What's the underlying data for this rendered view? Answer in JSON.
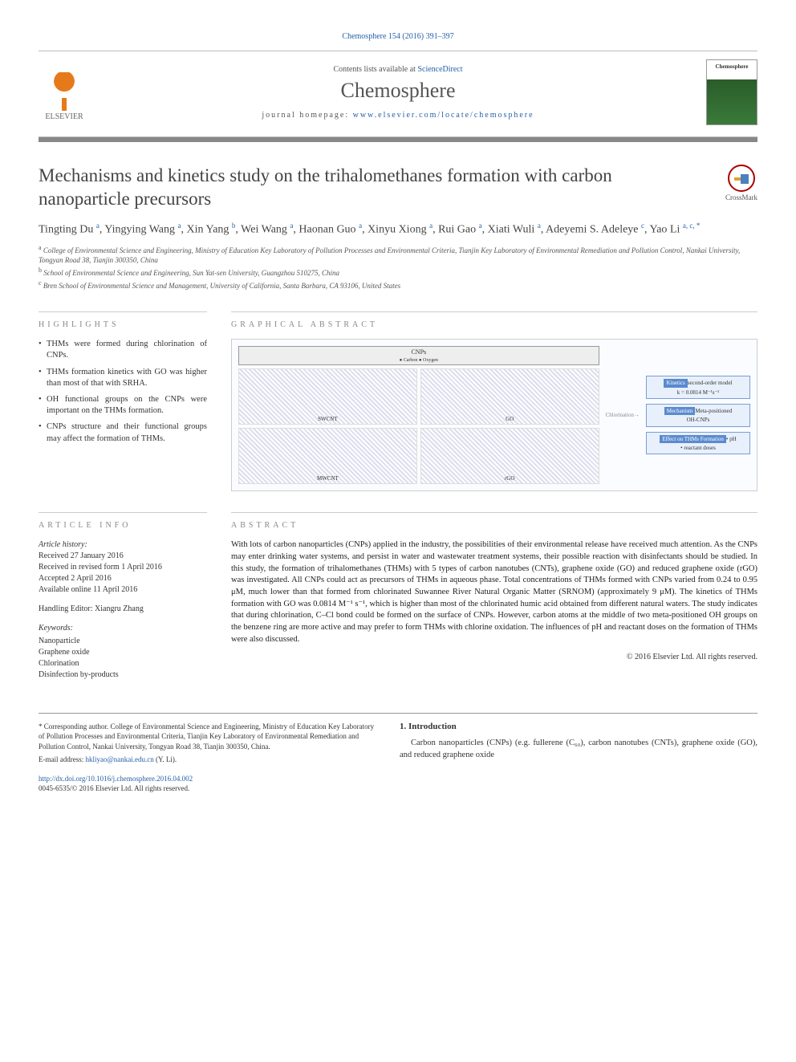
{
  "citation": "Chemosphere 154 (2016) 391–397",
  "header": {
    "contents_prefix": "Contents lists available at ",
    "contents_link": "ScienceDirect",
    "journal": "Chemosphere",
    "homepage_prefix": "journal homepage: ",
    "homepage_link": "www.elsevier.com/locate/chemosphere",
    "publisher": "ELSEVIER",
    "cover_title": "Chemosphere"
  },
  "crossmark": "CrossMark",
  "title": "Mechanisms and kinetics study on the trihalomethanes formation with carbon nanoparticle precursors",
  "authors_html": "Tingting Du <sup>a</sup>, Yingying Wang <sup>a</sup>, Xin Yang <sup>b</sup>, Wei Wang <sup>a</sup>, Haonan Guo <sup>a</sup>, Xinyu Xiong <sup>a</sup>, Rui Gao <sup>a</sup>, Xiati Wuli <sup>a</sup>, Adeyemi S. Adeleye <sup>c</sup>, Yao Li <sup>a, c, *</sup>",
  "affiliations": [
    {
      "sup": "a",
      "text": "College of Environmental Science and Engineering, Ministry of Education Key Laboratory of Pollution Processes and Environmental Criteria, Tianjin Key Laboratory of Environmental Remediation and Pollution Control, Nankai University, Tongyan Road 38, Tianjin 300350, China"
    },
    {
      "sup": "b",
      "text": "School of Environmental Science and Engineering, Sun Yat-sen University, Guangzhou 510275, China"
    },
    {
      "sup": "c",
      "text": "Bren School of Environmental Science and Management, University of California, Santa Barbara, CA 93106, United States"
    }
  ],
  "highlights_head": "HIGHLIGHTS",
  "highlights": [
    "THMs were formed during chlorination of CNPs.",
    "THMs formation kinetics with GO was higher than most of that with SRHA.",
    "OH functional groups on the CNPs were important on the THMs formation.",
    "CNPs structure and their functional groups may affect the formation of THMs."
  ],
  "graphical_head": "GRAPHICAL ABSTRACT",
  "graphical": {
    "cnps_label": "CNPs",
    "legend": "● Carbon  ● Oxygen",
    "mols": [
      "SWCNT",
      "GO",
      "MWCNT",
      "rGO"
    ],
    "arrow_label": "Chlorination",
    "boxes": [
      {
        "title": "Kinetics",
        "body": "second-order model\nk = 0.0814 M⁻¹s⁻¹"
      },
      {
        "title": "Mechanism",
        "body": "Meta-positioned\nOH-CNPs"
      },
      {
        "title": "Effect on THMs Formation",
        "body": "• pH\n• reactant doses"
      }
    ]
  },
  "article_info_head": "ARTICLE INFO",
  "article_info": {
    "history_label": "Article history:",
    "received": "Received 27 January 2016",
    "revised": "Received in revised form 1 April 2016",
    "accepted": "Accepted 2 April 2016",
    "online": "Available online 11 April 2016",
    "editor_label": "Handling Editor: ",
    "editor": "Xiangru Zhang",
    "keywords_label": "Keywords:",
    "keywords": [
      "Nanoparticle",
      "Graphene oxide",
      "Chlorination",
      "Disinfection by-products"
    ]
  },
  "abstract_head": "ABSTRACT",
  "abstract": "With lots of carbon nanoparticles (CNPs) applied in the industry, the possibilities of their environmental release have received much attention. As the CNPs may enter drinking water systems, and persist in water and wastewater treatment systems, their possible reaction with disinfectants should be studied. In this study, the formation of trihalomethanes (THMs) with 5 types of carbon nanotubes (CNTs), graphene oxide (GO) and reduced graphene oxide (rGO) was investigated. All CNPs could act as precursors of THMs in aqueous phase. Total concentrations of THMs formed with CNPs varied from 0.24 to 0.95 μM, much lower than that formed from chlorinated Suwannee River Natural Organic Matter (SRNOM) (approximately 9 μM). The kinetics of THMs formation with GO was 0.0814 M⁻¹ s⁻¹, which is higher than most of the chlorinated humic acid obtained from different natural waters. The study indicates that during chlorination, C–Cl bond could be formed on the surface of CNPs. However, carbon atoms at the middle of two meta-positioned OH groups on the benzene ring are more active and may prefer to form THMs with chlorine oxidation. The influences of pH and reactant doses on the formation of THMs were also discussed.",
  "copyright": "© 2016 Elsevier Ltd. All rights reserved.",
  "corresponding": {
    "star": "* Corresponding author. College of Environmental Science and Engineering, Ministry of Education Key Laboratory of Pollution Processes and Environmental Criteria, Tianjin Key Laboratory of Environmental Remediation and Pollution Control, Nankai University, Tongyan Road 38, Tianjin 300350, China.",
    "email_label": "E-mail address: ",
    "email": "hkliyao@nankai.edu.cn",
    "email_person": " (Y. Li)."
  },
  "intro_head": "1. Introduction",
  "intro_text": "Carbon nanoparticles (CNPs) (e.g. fullerene (C₆₀), carbon nanotubes (CNTs), graphene oxide (GO), and reduced graphene oxide",
  "doi": "http://dx.doi.org/10.1016/j.chemosphere.2016.04.002",
  "issn": "0045-6535/© 2016 Elsevier Ltd. All rights reserved.",
  "colors": {
    "link": "#2560a8",
    "bar": "#888888",
    "box_border": "#7a9ed8",
    "box_bg": "#e8f0fb",
    "box_title": "#5a8acf"
  }
}
